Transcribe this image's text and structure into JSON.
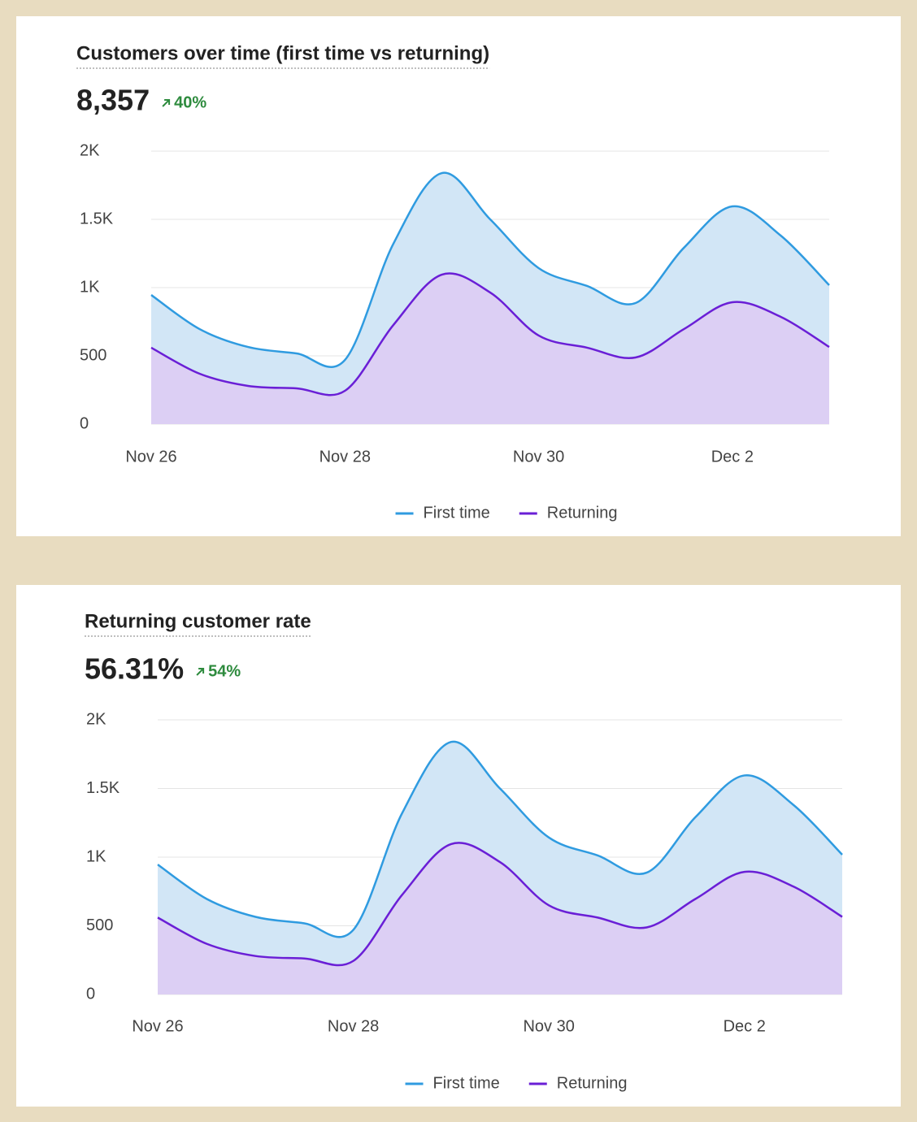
{
  "chart_data": [
    {
      "type": "area",
      "title": "Customers over time (first time vs returning)",
      "headline": "8,357",
      "change": "40%",
      "x": [
        0,
        0.5,
        1,
        1.5,
        2,
        2.5,
        3,
        3.5,
        4,
        4.5,
        5,
        5.5,
        6,
        6.5,
        7
      ],
      "xlim": [
        0,
        7
      ],
      "xticks": [
        {
          "value": 0,
          "label": "Nov 26"
        },
        {
          "value": 2,
          "label": "Nov 28"
        },
        {
          "value": 4,
          "label": "Nov 30"
        },
        {
          "value": 6,
          "label": "Dec 2"
        }
      ],
      "ylim": [
        0,
        2000
      ],
      "yticks": [
        0,
        500,
        {
          "value": 1000,
          "label": "1K"
        },
        {
          "value": 1500,
          "label": "1.5K"
        },
        {
          "value": 2000,
          "label": "2K"
        }
      ],
      "grid": true,
      "series": [
        {
          "name": "First time",
          "color": "#2f9be0",
          "fill": "#d2e6f6",
          "values": [
            946,
            696,
            565,
            518,
            470,
            1321,
            1839,
            1500,
            1143,
            1012,
            887,
            1292,
            1595,
            1381,
            1018
          ]
        },
        {
          "name": "Returning",
          "color": "#6a1fd6",
          "fill": "#dccff4",
          "values": [
            560,
            369,
            280,
            262,
            244,
            726,
            1095,
            964,
            649,
            560,
            488,
            696,
            893,
            786,
            565
          ]
        }
      ]
    },
    {
      "type": "area",
      "title": "Returning customer rate",
      "headline": "56.31%",
      "change": "54%",
      "x": [
        0,
        0.5,
        1,
        1.5,
        2,
        2.5,
        3,
        3.5,
        4,
        4.5,
        5,
        5.5,
        6,
        6.5,
        7
      ],
      "xlim": [
        0,
        7
      ],
      "xticks": [
        {
          "value": 0,
          "label": "Nov 26"
        },
        {
          "value": 2,
          "label": "Nov 28"
        },
        {
          "value": 4,
          "label": "Nov 30"
        },
        {
          "value": 6,
          "label": "Dec 2"
        }
      ],
      "ylim": [
        0,
        2000
      ],
      "yticks": [
        0,
        500,
        {
          "value": 1000,
          "label": "1K"
        },
        {
          "value": 1500,
          "label": "1.5K"
        },
        {
          "value": 2000,
          "label": "2K"
        }
      ],
      "grid": true,
      "series": [
        {
          "name": "First time",
          "color": "#2f9be0",
          "fill": "#d2e6f6",
          "values": [
            946,
            696,
            565,
            518,
            470,
            1321,
            1839,
            1500,
            1143,
            1012,
            887,
            1292,
            1595,
            1381,
            1018
          ]
        },
        {
          "name": "Returning",
          "color": "#6a1fd6",
          "fill": "#dccff4",
          "values": [
            560,
            369,
            280,
            262,
            244,
            726,
            1095,
            964,
            649,
            560,
            488,
            696,
            893,
            786,
            565
          ]
        }
      ]
    }
  ]
}
